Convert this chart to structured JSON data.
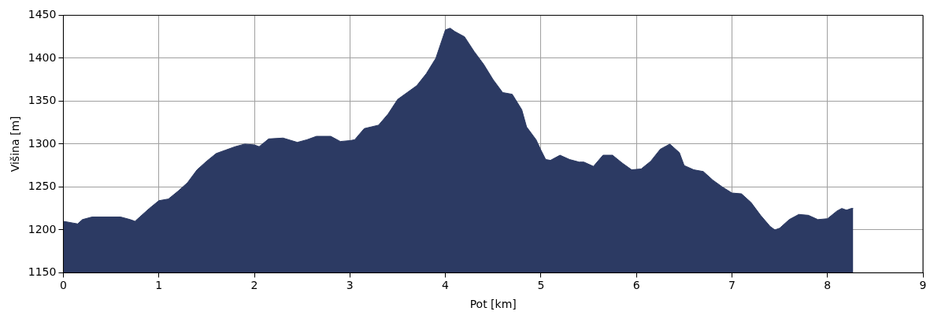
{
  "chart_data": {
    "type": "area",
    "xlabel": "Pot [km]",
    "ylabel": "Višina [m]",
    "xlim": [
      0,
      9
    ],
    "xticks": [
      0,
      1,
      2,
      3,
      4,
      5,
      6,
      7,
      8,
      9
    ],
    "ylim": [
      1150,
      1450
    ],
    "yticks": [
      1150,
      1200,
      1250,
      1300,
      1350,
      1400,
      1450
    ],
    "grid": true,
    "legend": false,
    "series": [
      {
        "color": "#2c3a63",
        "x": [
          0,
          0.1,
          0.15,
          0.2,
          0.3,
          0.6,
          0.7,
          0.75,
          0.8,
          0.9,
          1.0,
          1.1,
          1.2,
          1.3,
          1.4,
          1.5,
          1.6,
          1.7,
          1.8,
          1.9,
          2.0,
          2.05,
          2.15,
          2.3,
          2.45,
          2.55,
          2.65,
          2.8,
          2.9,
          3.0,
          3.05,
          3.15,
          3.3,
          3.4,
          3.5,
          3.6,
          3.7,
          3.8,
          3.9,
          4.0,
          4.05,
          4.1,
          4.2,
          4.3,
          4.4,
          4.5,
          4.6,
          4.7,
          4.8,
          4.85,
          4.95,
          5.0,
          5.05,
          5.1,
          5.2,
          5.3,
          5.4,
          5.45,
          5.55,
          5.65,
          5.75,
          5.85,
          5.95,
          6.05,
          6.15,
          6.25,
          6.35,
          6.45,
          6.5,
          6.6,
          6.7,
          6.8,
          6.9,
          7.0,
          7.1,
          7.2,
          7.3,
          7.4,
          7.45,
          7.5,
          7.6,
          7.7,
          7.8,
          7.9,
          8.0,
          8.1,
          8.15,
          8.2,
          8.25,
          8.27
        ],
        "values": [
          1210,
          1208,
          1207,
          1212,
          1215,
          1215,
          1212,
          1210,
          1215,
          1225,
          1234,
          1236,
          1245,
          1255,
          1270,
          1280,
          1289,
          1293,
          1297,
          1300,
          1299,
          1297,
          1306,
          1307,
          1302,
          1305,
          1309,
          1309,
          1303,
          1304,
          1305,
          1318,
          1322,
          1335,
          1352,
          1360,
          1368,
          1382,
          1400,
          1433,
          1435,
          1431,
          1425,
          1408,
          1393,
          1375,
          1360,
          1358,
          1340,
          1320,
          1305,
          1293,
          1282,
          1281,
          1287,
          1282,
          1279,
          1279,
          1274,
          1287,
          1287,
          1278,
          1270,
          1271,
          1280,
          1294,
          1300,
          1290,
          1275,
          1270,
          1268,
          1258,
          1250,
          1243,
          1242,
          1232,
          1217,
          1204,
          1200,
          1202,
          1212,
          1218,
          1217,
          1212,
          1213,
          1222,
          1225,
          1223,
          1225,
          1225
        ]
      }
    ]
  }
}
